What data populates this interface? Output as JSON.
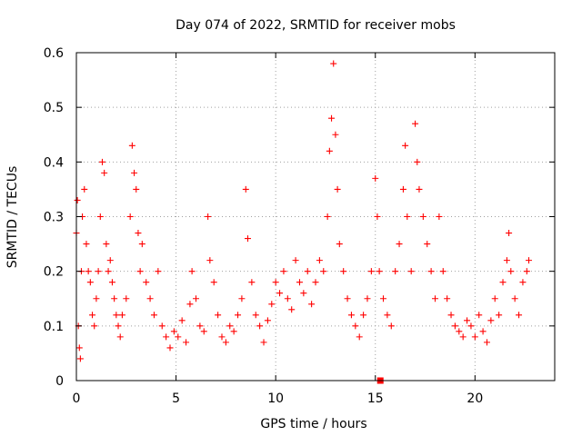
{
  "chart_data": {
    "type": "scatter",
    "title": "Day 074 of 2022, SRMTID for receiver mobs",
    "xlabel": "GPS time / hours",
    "ylabel": "SRMTID / TECUs",
    "xlim": [
      0,
      24
    ],
    "ylim": [
      0,
      0.6
    ],
    "x_ticks": [
      0,
      5,
      10,
      15,
      20
    ],
    "x_tick_labels": [
      "0",
      "5",
      "10",
      "15",
      "20"
    ],
    "y_ticks": [
      0,
      0.1,
      0.2,
      0.3,
      0.4,
      0.5,
      0.6
    ],
    "y_tick_labels": [
      "0",
      "0.1",
      "0.2",
      "0.3",
      "0.4",
      "0.5",
      "0.6"
    ],
    "grid": true,
    "marker": "plus",
    "colors": {
      "points": "#ff0000",
      "grid": "#a0a0a0",
      "axes": "#000000"
    },
    "series": [
      {
        "name": "mobs",
        "points": [
          [
            0.0,
            0.27
          ],
          [
            0.05,
            0.33
          ],
          [
            0.1,
            0.1
          ],
          [
            0.15,
            0.06
          ],
          [
            0.2,
            0.04
          ],
          [
            0.25,
            0.2
          ],
          [
            0.3,
            0.3
          ],
          [
            0.4,
            0.35
          ],
          [
            0.5,
            0.25
          ],
          [
            0.6,
            0.2
          ],
          [
            0.7,
            0.18
          ],
          [
            0.8,
            0.12
          ],
          [
            0.9,
            0.1
          ],
          [
            1.0,
            0.15
          ],
          [
            1.1,
            0.2
          ],
          [
            1.2,
            0.3
          ],
          [
            1.3,
            0.4
          ],
          [
            1.4,
            0.38
          ],
          [
            1.5,
            0.25
          ],
          [
            1.6,
            0.2
          ],
          [
            1.7,
            0.22
          ],
          [
            1.8,
            0.18
          ],
          [
            1.9,
            0.15
          ],
          [
            2.0,
            0.12
          ],
          [
            2.1,
            0.1
          ],
          [
            2.2,
            0.08
          ],
          [
            2.3,
            0.12
          ],
          [
            2.5,
            0.15
          ],
          [
            2.7,
            0.3
          ],
          [
            2.8,
            0.43
          ],
          [
            2.9,
            0.38
          ],
          [
            3.0,
            0.35
          ],
          [
            3.1,
            0.27
          ],
          [
            3.2,
            0.2
          ],
          [
            3.3,
            0.25
          ],
          [
            3.5,
            0.18
          ],
          [
            3.7,
            0.15
          ],
          [
            3.9,
            0.12
          ],
          [
            4.1,
            0.2
          ],
          [
            4.3,
            0.1
          ],
          [
            4.5,
            0.08
          ],
          [
            4.7,
            0.06
          ],
          [
            4.9,
            0.09
          ],
          [
            5.1,
            0.08
          ],
          [
            5.3,
            0.11
          ],
          [
            5.5,
            0.07
          ],
          [
            5.7,
            0.14
          ],
          [
            5.8,
            0.2
          ],
          [
            6.0,
            0.15
          ],
          [
            6.2,
            0.1
          ],
          [
            6.4,
            0.09
          ],
          [
            6.6,
            0.3
          ],
          [
            6.7,
            0.22
          ],
          [
            6.9,
            0.18
          ],
          [
            7.1,
            0.12
          ],
          [
            7.3,
            0.08
          ],
          [
            7.5,
            0.07
          ],
          [
            7.7,
            0.1
          ],
          [
            7.9,
            0.09
          ],
          [
            8.1,
            0.12
          ],
          [
            8.3,
            0.15
          ],
          [
            8.5,
            0.35
          ],
          [
            8.6,
            0.26
          ],
          [
            8.8,
            0.18
          ],
          [
            9.0,
            0.12
          ],
          [
            9.2,
            0.1
          ],
          [
            9.4,
            0.07
          ],
          [
            9.6,
            0.11
          ],
          [
            9.8,
            0.14
          ],
          [
            10.0,
            0.18
          ],
          [
            10.2,
            0.16
          ],
          [
            10.4,
            0.2
          ],
          [
            10.6,
            0.15
          ],
          [
            10.8,
            0.13
          ],
          [
            11.0,
            0.22
          ],
          [
            11.2,
            0.18
          ],
          [
            11.4,
            0.16
          ],
          [
            11.6,
            0.2
          ],
          [
            11.8,
            0.14
          ],
          [
            12.0,
            0.18
          ],
          [
            12.2,
            0.22
          ],
          [
            12.4,
            0.2
          ],
          [
            12.6,
            0.3
          ],
          [
            12.7,
            0.42
          ],
          [
            12.8,
            0.48
          ],
          [
            12.9,
            0.58
          ],
          [
            13.0,
            0.45
          ],
          [
            13.1,
            0.35
          ],
          [
            13.2,
            0.25
          ],
          [
            13.4,
            0.2
          ],
          [
            13.6,
            0.15
          ],
          [
            13.8,
            0.12
          ],
          [
            14.0,
            0.1
          ],
          [
            14.2,
            0.08
          ],
          [
            14.4,
            0.12
          ],
          [
            14.6,
            0.15
          ],
          [
            14.8,
            0.2
          ],
          [
            15.0,
            0.37
          ],
          [
            15.1,
            0.3
          ],
          [
            15.2,
            0.2
          ],
          [
            15.4,
            0.15
          ],
          [
            15.6,
            0.12
          ],
          [
            15.8,
            0.1
          ],
          [
            16.0,
            0.2
          ],
          [
            16.2,
            0.25
          ],
          [
            16.4,
            0.35
          ],
          [
            16.5,
            0.43
          ],
          [
            16.6,
            0.3
          ],
          [
            16.8,
            0.2
          ],
          [
            17.0,
            0.47
          ],
          [
            17.1,
            0.4
          ],
          [
            17.2,
            0.35
          ],
          [
            17.4,
            0.3
          ],
          [
            17.6,
            0.25
          ],
          [
            17.8,
            0.2
          ],
          [
            18.0,
            0.15
          ],
          [
            18.2,
            0.3
          ],
          [
            18.4,
            0.2
          ],
          [
            18.6,
            0.15
          ],
          [
            18.8,
            0.12
          ],
          [
            19.0,
            0.1
          ],
          [
            19.2,
            0.09
          ],
          [
            19.4,
            0.08
          ],
          [
            19.6,
            0.11
          ],
          [
            19.8,
            0.1
          ],
          [
            20.0,
            0.08
          ],
          [
            20.2,
            0.12
          ],
          [
            20.4,
            0.09
          ],
          [
            20.6,
            0.07
          ],
          [
            20.8,
            0.11
          ],
          [
            21.0,
            0.15
          ],
          [
            21.2,
            0.12
          ],
          [
            21.4,
            0.18
          ],
          [
            21.6,
            0.22
          ],
          [
            21.7,
            0.27
          ],
          [
            21.8,
            0.2
          ],
          [
            22.0,
            0.15
          ],
          [
            22.2,
            0.12
          ],
          [
            22.4,
            0.18
          ],
          [
            22.6,
            0.2
          ],
          [
            22.7,
            0.22
          ]
        ]
      }
    ],
    "outlier_marker": {
      "x": 15.25,
      "y": 0.0,
      "marker": "square"
    }
  }
}
